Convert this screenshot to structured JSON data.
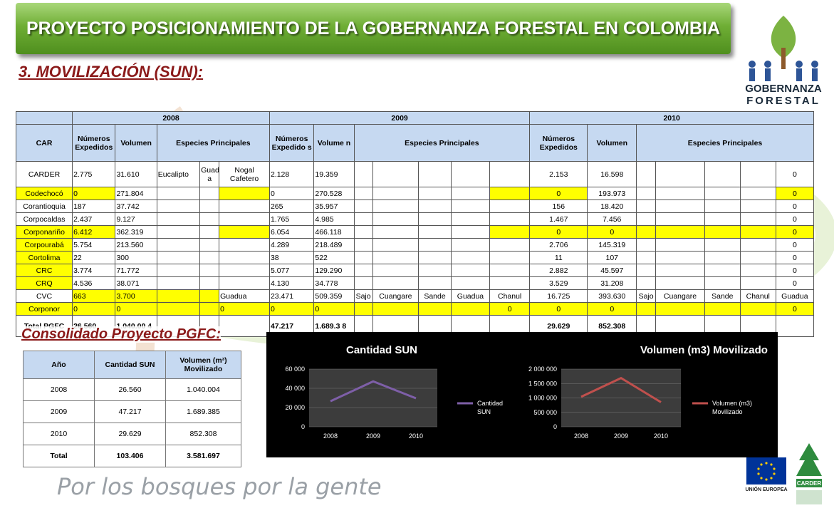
{
  "banner": {
    "title": "PROYECTO POSICIONAMIENTO DE LA GOBERNANZA FORESTAL EN COLOMBIA"
  },
  "section": {
    "title": "3. MOVILIZACIÓN (SUN):"
  },
  "logos": {
    "gobernanza_line1": "GOBERNANZA",
    "gobernanza_line2": "FORESTAL",
    "eu_label": "UNIÓN EUROPEA",
    "carder_label": "CARDER"
  },
  "table": {
    "years": [
      "2008",
      "2009",
      "2010"
    ],
    "headers": {
      "car": "CAR",
      "numeros": "Números Expedidos",
      "numeros_2009": "Números Expedido s",
      "volumen": "Volumen",
      "volumen_2009": "Volume n",
      "especies": "Especies Principales"
    },
    "rows": [
      [
        "CARDER",
        "2.775",
        "31.610",
        "Eucalipto",
        "Guadu a",
        "Nogal Cafetero",
        "2.128",
        "19.359",
        "",
        "",
        "",
        "",
        "",
        "2.153",
        "16.598",
        "",
        "",
        "",
        "",
        "0"
      ],
      [
        "Codechocó",
        "0",
        "271.804",
        "",
        "",
        "",
        "0",
        "270.528",
        "",
        "",
        "",
        "",
        "",
        "0",
        "193.973",
        "",
        "",
        "",
        "",
        "0"
      ],
      [
        "Corantioquia",
        "187",
        "37.742",
        "",
        "",
        "",
        "265",
        "35.957",
        "",
        "",
        "",
        "",
        "",
        "156",
        "18.420",
        "",
        "",
        "",
        "",
        "0"
      ],
      [
        "Corpocaldas",
        "2.437",
        "9.127",
        "",
        "",
        "",
        "1.765",
        "4.985",
        "",
        "",
        "",
        "",
        "",
        "1.467",
        "7.456",
        "",
        "",
        "",
        "",
        "0"
      ],
      [
        "Corponariño",
        "6.412",
        "362.319",
        "",
        "",
        "",
        "6.054",
        "466.118",
        "",
        "",
        "",
        "",
        "",
        "0",
        "0",
        "",
        "",
        "",
        "",
        "0"
      ],
      [
        "Corpourabá",
        "5.754",
        "213.560",
        "",
        "",
        "",
        "4.289",
        "218.489",
        "",
        "",
        "",
        "",
        "",
        "2.706",
        "145.319",
        "",
        "",
        "",
        "",
        "0"
      ],
      [
        "Cortolima",
        "22",
        "300",
        "",
        "",
        "",
        "38",
        "522",
        "",
        "",
        "",
        "",
        "",
        "11",
        "107",
        "",
        "",
        "",
        "",
        "0"
      ],
      [
        "CRC",
        "3.774",
        "71.772",
        "",
        "",
        "",
        "5.077",
        "129.290",
        "",
        "",
        "",
        "",
        "",
        "2.882",
        "45.597",
        "",
        "",
        "",
        "",
        "0"
      ],
      [
        "CRQ",
        "4.536",
        "38.071",
        "",
        "",
        "",
        "4.130",
        "34.778",
        "",
        "",
        "",
        "",
        "",
        "3.529",
        "31.208",
        "",
        "",
        "",
        "",
        "0"
      ],
      [
        "CVC",
        "663",
        "3.700",
        "",
        "",
        "Guadua",
        "23.471",
        "509.359",
        "Sajo",
        "Cuangare",
        "Sande",
        "Guadua",
        "Chanul",
        "16.725",
        "393.630",
        "Sajo",
        "Cuangare",
        "Sande",
        "Chanul",
        "Guadua"
      ],
      [
        "Corponor",
        "0",
        "0",
        "",
        "",
        "0",
        "0",
        "0",
        "",
        "",
        "",
        "",
        "0",
        "0",
        "0",
        "",
        "",
        "",
        "",
        "0"
      ],
      [
        "Total PGFC",
        "26.560",
        "1.040.00 4",
        "",
        "",
        "",
        "47.217",
        "1.689.3 8",
        "",
        "",
        "",
        "",
        "",
        "29.629",
        "852.308",
        "",
        "",
        "",
        "",
        ""
      ]
    ]
  },
  "consolidado": {
    "title": "Consolidado Proyecto PGFC:",
    "headers": [
      "Año",
      "Cantidad SUN",
      "Volumen (m³) Movilizado"
    ],
    "rows": [
      [
        "2008",
        "26.560",
        "1.040.004"
      ],
      [
        "2009",
        "47.217",
        "1.689.385"
      ],
      [
        "2010",
        "29.629",
        "852.308"
      ],
      [
        "Total",
        "103.406",
        "3.581.697"
      ]
    ]
  },
  "chart_data": [
    {
      "type": "line",
      "title": "Cantidad  SUN",
      "categories": [
        "2008",
        "2009",
        "2010"
      ],
      "series": [
        {
          "name": "Cantidad SUN",
          "values": [
            26560,
            47217,
            29629
          ]
        }
      ],
      "ylim": [
        0,
        60000
      ],
      "yticks": [
        "0",
        "20 000",
        "40 000",
        "60 000"
      ],
      "legend": "right",
      "color": "#7e5fa8"
    },
    {
      "type": "line",
      "title": "Volumen  (m3) Movilizado",
      "categories": [
        "2008",
        "2009",
        "2010"
      ],
      "series": [
        {
          "name": "Volumen (m3) Movilizado",
          "values": [
            1040004,
            1689385,
            852308
          ]
        }
      ],
      "ylim": [
        0,
        2000000
      ],
      "yticks": [
        "0",
        "500 000",
        "1 000 000",
        "1 500 000",
        "2 000 000"
      ],
      "legend": "right",
      "color": "#c0504d"
    }
  ],
  "slogan": "Por los bosques por la gente",
  "colors": {
    "banner": "#6fae35",
    "subtitle": "#8b1a1a",
    "header_fill": "#c6d9f1",
    "highlight": "#ffff00"
  }
}
